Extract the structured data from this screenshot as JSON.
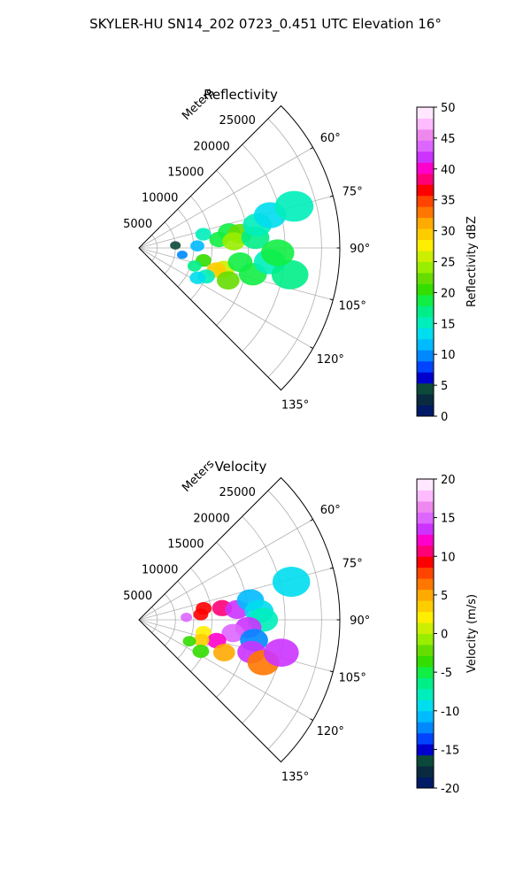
{
  "figure": {
    "suptitle": "SKYLER-HU  SN14_202  0723_0.451 UTC Elevation 16°"
  },
  "chart_data": [
    {
      "type": "heatmap",
      "projection": "polar-sector",
      "title": "Reflectivity",
      "radial_label": "Meters",
      "radial_ticks": [
        "5000",
        "10000",
        "15000",
        "20000",
        "25000"
      ],
      "radial_range": [
        0,
        27500
      ],
      "theta_ticks": [
        "60°",
        "75°",
        "90°",
        "105°",
        "120°",
        "135°"
      ],
      "theta_range_deg": [
        45,
        135
      ],
      "grid": true,
      "colorbar": {
        "label": "Reflectivity dBZ",
        "ticks": [
          "0",
          "5",
          "10",
          "15",
          "20",
          "25",
          "30",
          "35",
          "40",
          "45",
          "50"
        ],
        "range": [
          0,
          50
        ],
        "colors": [
          "#001a66",
          "#0a2a40",
          "#0b4a3a",
          "#0000cc",
          "#0044ff",
          "#0088ff",
          "#00bbff",
          "#00ddee",
          "#00eebb",
          "#00ee88",
          "#11ee44",
          "#33dd00",
          "#66dd00",
          "#99ee00",
          "#ccee00",
          "#ffee00",
          "#ffcc00",
          "#ffaa00",
          "#ff7700",
          "#ff4400",
          "#ff0000",
          "#ff0077",
          "#ff00cc",
          "#cc33ff",
          "#dd66ff",
          "#ee88ee",
          "#ffbbff",
          "#ffe8ff"
        ]
      },
      "cells": [
        {
          "az": 78,
          "r": 9000,
          "val": 16
        },
        {
          "az": 80,
          "r": 12500,
          "val": 18
        },
        {
          "az": 82,
          "r": 14000,
          "val": 22
        },
        {
          "az": 84,
          "r": 11000,
          "val": 19
        },
        {
          "az": 86,
          "r": 13000,
          "val": 24
        },
        {
          "az": 85,
          "r": 16000,
          "val": 17
        },
        {
          "az": 79,
          "r": 16500,
          "val": 15
        },
        {
          "az": 76,
          "r": 18500,
          "val": 14
        },
        {
          "az": 88,
          "r": 8000,
          "val": 12
        },
        {
          "az": 86,
          "r": 5000,
          "val": 5
        },
        {
          "az": 99,
          "r": 6000,
          "val": 10
        },
        {
          "az": 101,
          "r": 9000,
          "val": 20
        },
        {
          "az": 104,
          "r": 12000,
          "val": 26
        },
        {
          "az": 106,
          "r": 11000,
          "val": 30
        },
        {
          "az": 108,
          "r": 8000,
          "val": 17
        },
        {
          "az": 110,
          "r": 13000,
          "val": 22
        },
        {
          "az": 113,
          "r": 10000,
          "val": 15
        },
        {
          "az": 103,
          "r": 16000,
          "val": 18
        },
        {
          "az": 98,
          "r": 14000,
          "val": 19
        },
        {
          "az": 96,
          "r": 18000,
          "val": 16
        },
        {
          "az": 117,
          "r": 9000,
          "val": 14
        },
        {
          "az": 100,
          "r": 21000,
          "val": 17
        },
        {
          "az": 92,
          "r": 19000,
          "val": 18
        },
        {
          "az": 75,
          "r": 22000,
          "val": 16
        }
      ]
    },
    {
      "type": "heatmap",
      "projection": "polar-sector",
      "title": "Velocity",
      "radial_label": "Meters",
      "radial_ticks": [
        "5000",
        "10000",
        "15000",
        "20000",
        "25000"
      ],
      "radial_range": [
        0,
        27500
      ],
      "theta_ticks": [
        "60°",
        "75°",
        "90°",
        "105°",
        "120°",
        "135°"
      ],
      "theta_range_deg": [
        45,
        135
      ],
      "grid": true,
      "colorbar": {
        "label": "Velocity (m/s)",
        "ticks": [
          "-20",
          "-15",
          "-10",
          "-5",
          "0",
          "5",
          "10",
          "15",
          "20"
        ],
        "range": [
          -20,
          20
        ],
        "colors": [
          "#001a66",
          "#0a2a40",
          "#0b4a3a",
          "#0000cc",
          "#0044ff",
          "#0088ff",
          "#00bbff",
          "#00ddee",
          "#00eebb",
          "#00ee88",
          "#11ee44",
          "#33dd00",
          "#66dd00",
          "#99ee00",
          "#ccee00",
          "#ffee00",
          "#ffcc00",
          "#ffaa00",
          "#ff7700",
          "#ff4400",
          "#ff0000",
          "#ff0077",
          "#ff00cc",
          "#cc33ff",
          "#dd66ff",
          "#ee88ee",
          "#ffbbff",
          "#ffe8ff"
        ]
      },
      "cells": [
        {
          "az": 80,
          "r": 9000,
          "val": 9
        },
        {
          "az": 82,
          "r": 11500,
          "val": 10
        },
        {
          "az": 85,
          "r": 8500,
          "val": 9
        },
        {
          "az": 87,
          "r": 6500,
          "val": 15
        },
        {
          "az": 84,
          "r": 13500,
          "val": 13
        },
        {
          "az": 80,
          "r": 15500,
          "val": -11
        },
        {
          "az": 86,
          "r": 16500,
          "val": -10
        },
        {
          "az": 90,
          "r": 17000,
          "val": -8
        },
        {
          "az": 94,
          "r": 15000,
          "val": 14
        },
        {
          "az": 98,
          "r": 13000,
          "val": 15
        },
        {
          "az": 100,
          "r": 16000,
          "val": -12
        },
        {
          "az": 101,
          "r": 9000,
          "val": 2
        },
        {
          "az": 105,
          "r": 11000,
          "val": 12
        },
        {
          "az": 108,
          "r": 9000,
          "val": 3
        },
        {
          "az": 111,
          "r": 12500,
          "val": 5
        },
        {
          "az": 113,
          "r": 7500,
          "val": -3
        },
        {
          "az": 117,
          "r": 9500,
          "val": -4
        },
        {
          "az": 106,
          "r": 16000,
          "val": 13
        },
        {
          "az": 109,
          "r": 18000,
          "val": 7
        },
        {
          "az": 103,
          "r": 20000,
          "val": 14
        },
        {
          "az": 76,
          "r": 21500,
          "val": -9
        }
      ]
    }
  ]
}
